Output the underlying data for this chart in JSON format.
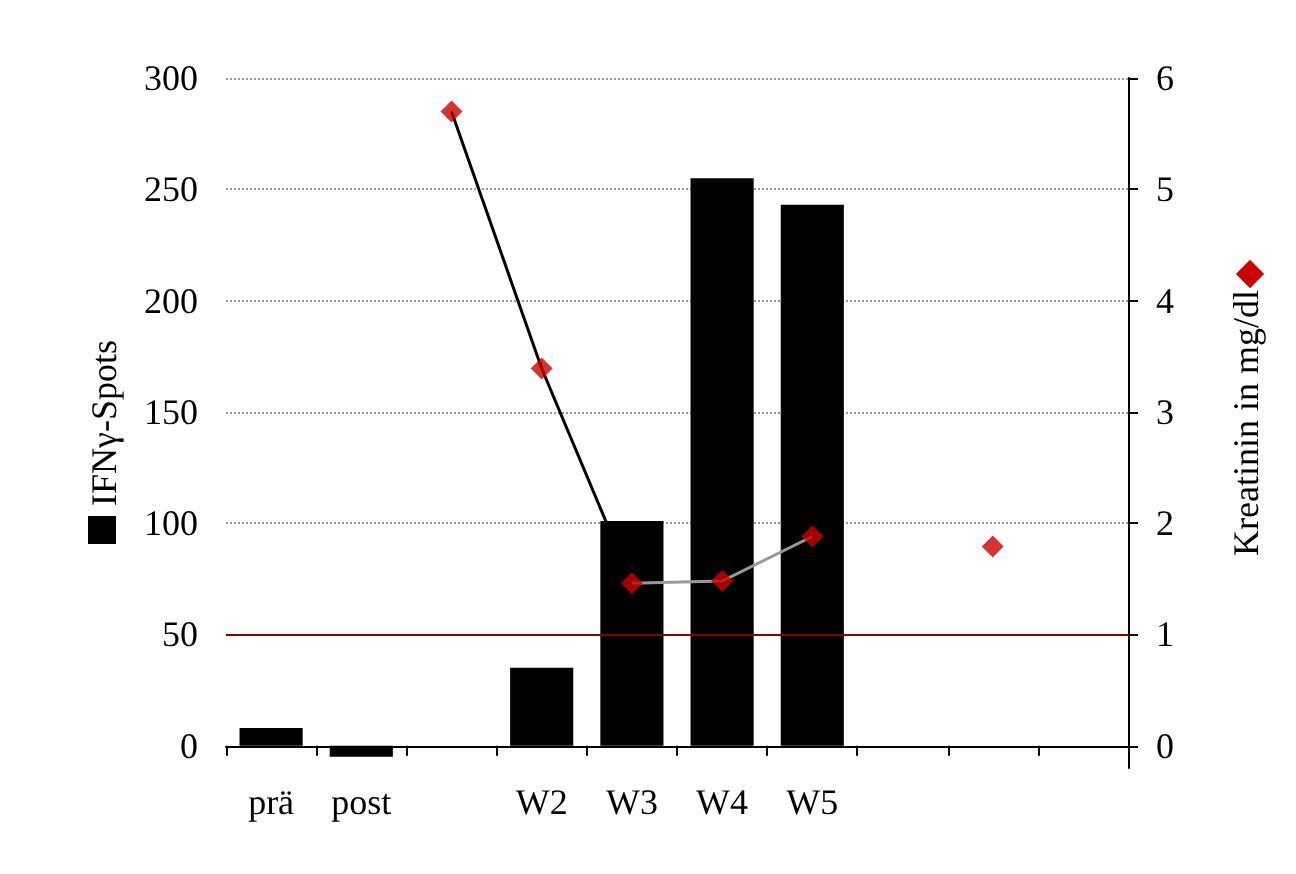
{
  "chart_data": {
    "type": "bar",
    "ylabel": "IFNγ-Spots",
    "y2label": "Kreatinin in mg/dl",
    "categories": [
      "prä",
      "post",
      null,
      "W2",
      "W3",
      "W4",
      "W5",
      null,
      null,
      null
    ],
    "series": [
      {
        "color": "#000000",
        "values": [
          8,
          -5,
          null,
          35,
          101,
          255,
          243,
          null,
          null,
          null
        ]
      },
      {
        "type": "line",
        "axis": "y2",
        "color": "#000000",
        "marker": "none",
        "values": [
          null,
          null,
          5.7,
          3.39,
          1.46,
          null,
          null,
          null,
          null,
          null
        ]
      },
      {
        "type": "line",
        "axis": "y2",
        "color": "#999999",
        "marker": "none",
        "values": [
          null,
          null,
          null,
          null,
          1.46,
          1.48,
          1.88,
          null,
          null,
          null
        ]
      },
      {
        "type": "scatter",
        "axis": "y2",
        "color": "#cc0000",
        "marker": "diamond",
        "values": [
          null,
          null,
          5.7,
          3.39,
          1.46,
          1.48,
          1.88,
          null,
          1.79,
          null
        ]
      }
    ],
    "ylim": [
      -10,
      300
    ],
    "yticks": [
      0,
      50,
      100,
      150,
      200,
      250,
      300
    ],
    "y2lim": [
      -0.2,
      6
    ],
    "y2ticks": [
      0,
      1,
      2,
      3,
      4,
      5,
      6
    ],
    "ref_lines": [
      {
        "axis": "y",
        "value": 50,
        "color": "#8b0000"
      }
    ],
    "grid": "y"
  }
}
